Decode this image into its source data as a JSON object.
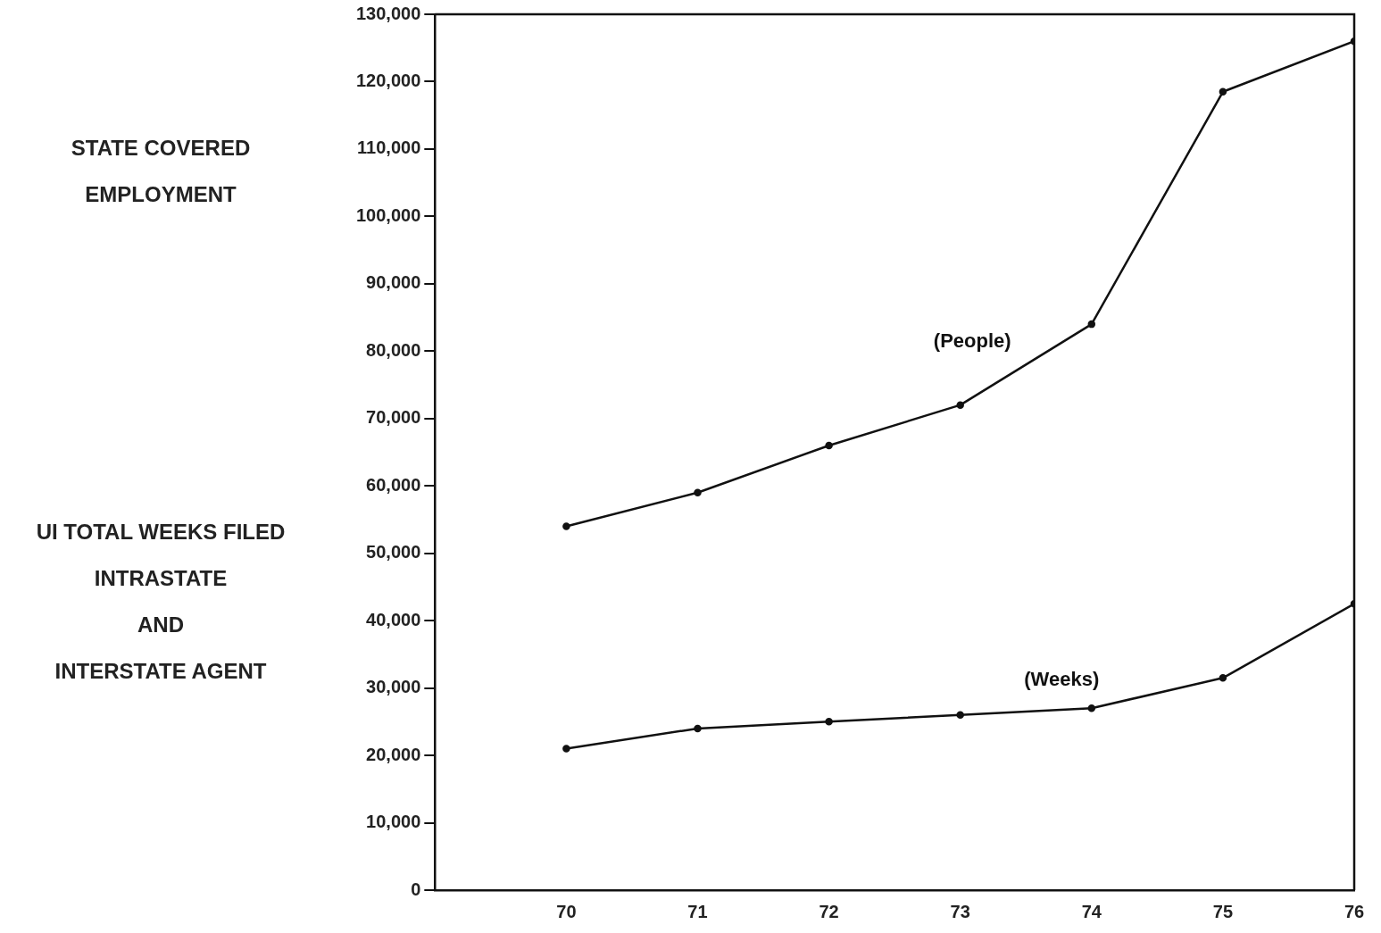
{
  "chart_data": {
    "type": "line",
    "x": [
      70,
      71,
      72,
      73,
      74,
      75,
      76
    ],
    "series": [
      {
        "name": "(People)",
        "color": "#111111",
        "values": [
          54000,
          59000,
          66000,
          72000,
          84000,
          118500,
          126000
        ]
      },
      {
        "name": "(Weeks)",
        "color": "#111111",
        "values": [
          21000,
          24000,
          25000,
          26000,
          27000,
          31500,
          42500
        ]
      }
    ],
    "xlim": [
      69,
      76
    ],
    "xticks": [
      70,
      71,
      72,
      73,
      74,
      75,
      76
    ],
    "ylim": [
      0,
      130000
    ],
    "yticks": [
      0,
      {
        "value": 10000,
        "label": "10,000"
      },
      {
        "value": 20000,
        "label": "20,000"
      },
      {
        "value": 30000,
        "label": "30,000"
      },
      {
        "value": 40000,
        "label": "40,000"
      },
      {
        "value": 50000,
        "label": "50,000"
      },
      {
        "value": 60000,
        "label": "60,000"
      },
      {
        "value": 70000,
        "label": "70,000"
      },
      {
        "value": 80000,
        "label": "80,000"
      },
      {
        "value": 90000,
        "label": "90,000"
      },
      {
        "value": 100000,
        "label": "100,000"
      },
      {
        "value": 110000,
        "label": "110,000"
      },
      {
        "value": 120000,
        "label": "120,000"
      },
      {
        "value": 130000,
        "label": "130,000"
      }
    ],
    "grid": false,
    "legend": false,
    "marker": "circle",
    "line_style": "solid",
    "annotations": [
      "STATE COVERED\nEMPLOYMENT",
      "UI TOTAL WEEKS FILED\nINTRASTATE\nAND\nINTERSTATE AGENT"
    ]
  }
}
